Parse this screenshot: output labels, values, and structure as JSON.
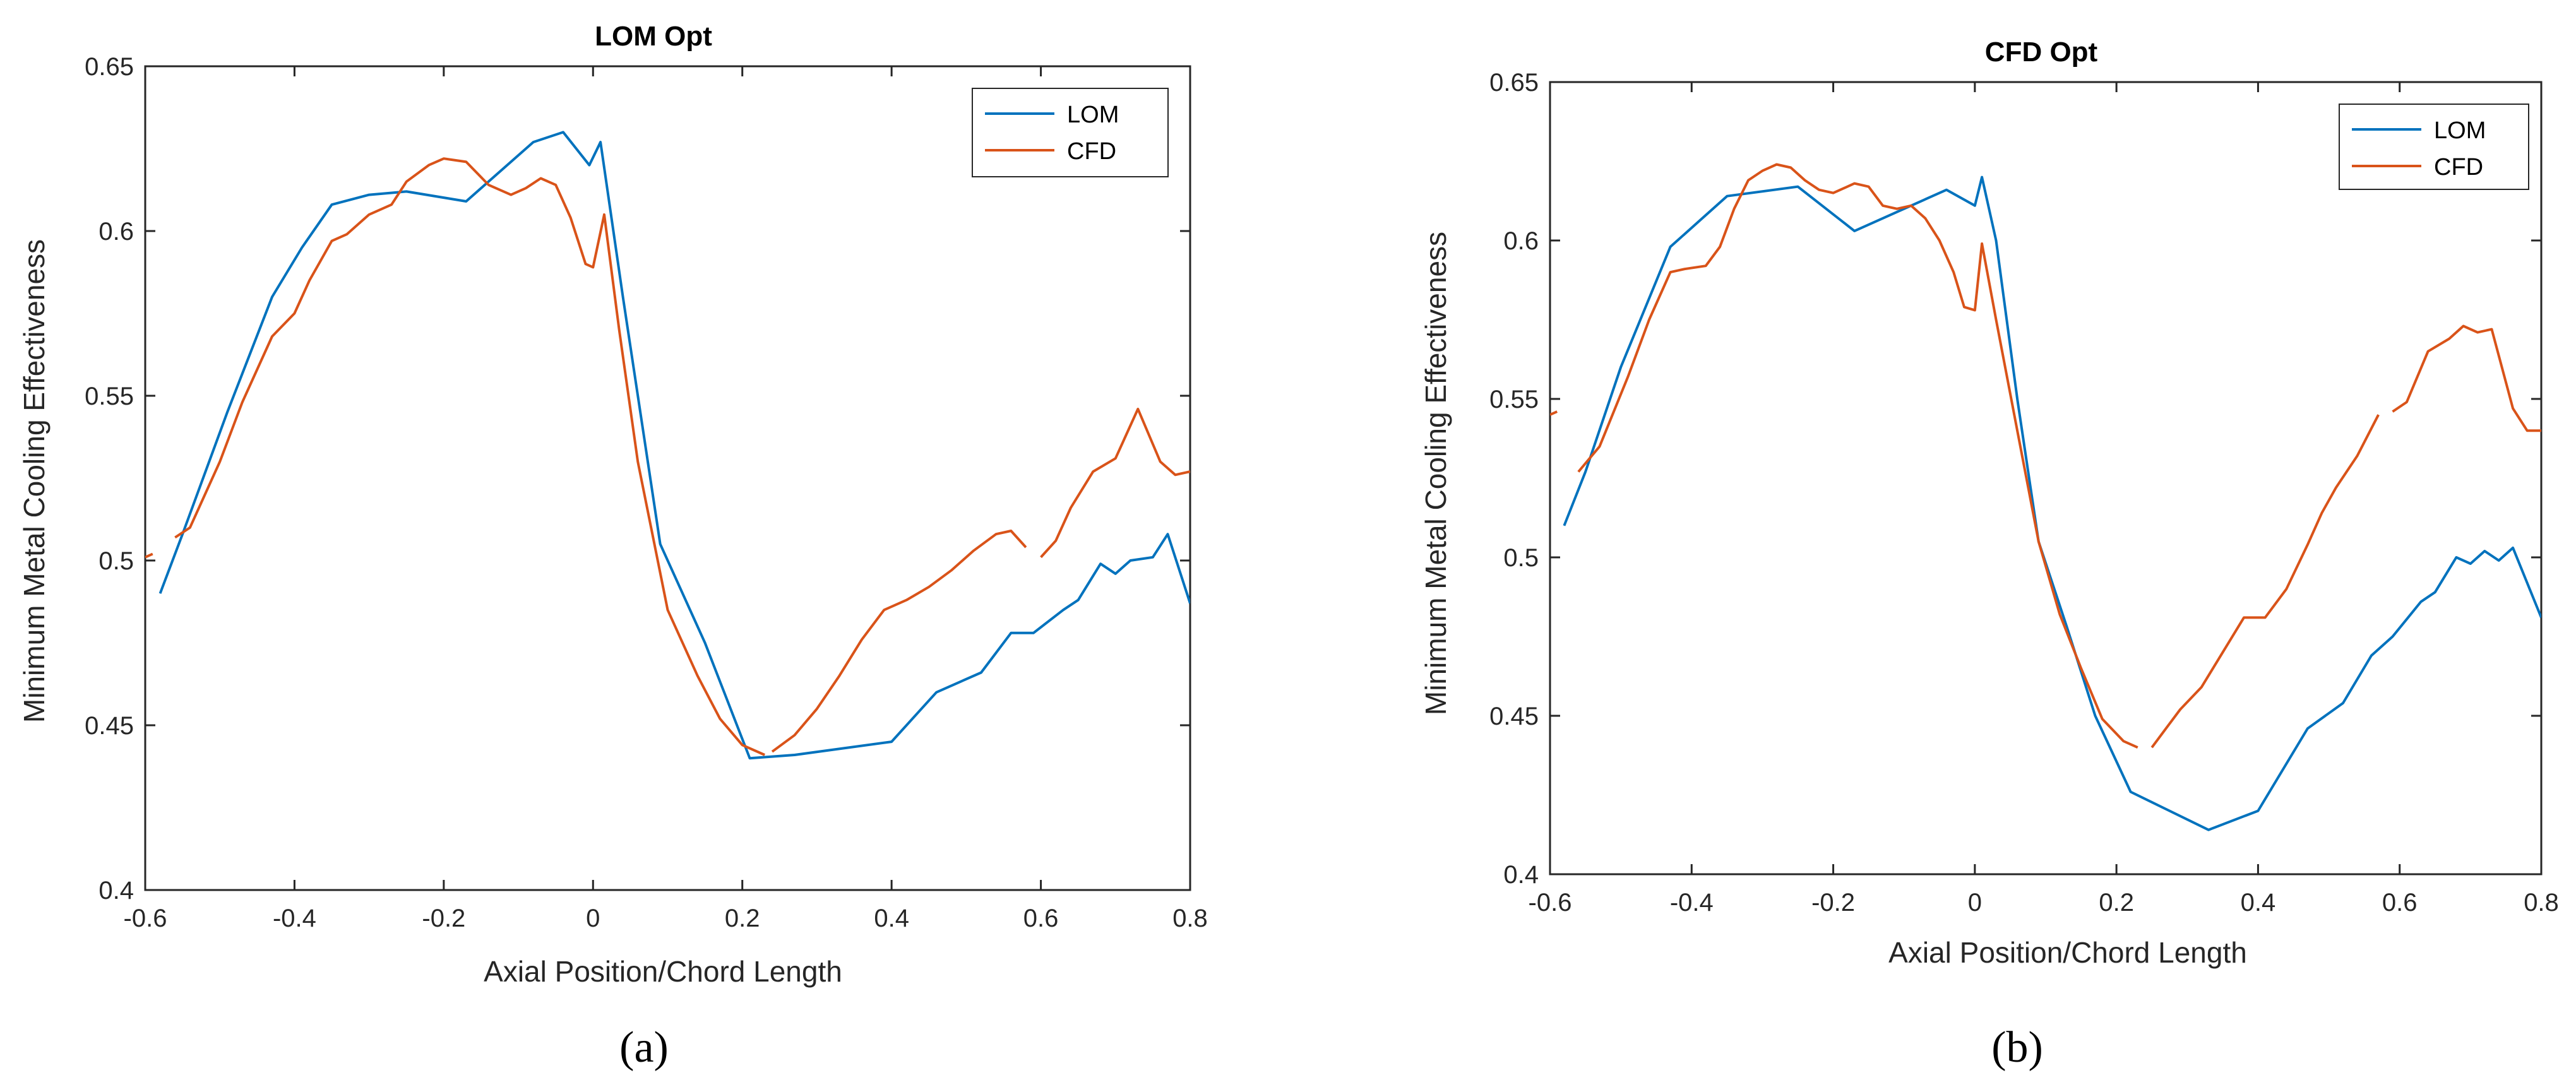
{
  "colors": {
    "lom": "#0072BD",
    "cfd": "#D95319",
    "axis": "#262626"
  },
  "captions": [
    "(a)",
    "(b)"
  ],
  "chart_data": [
    {
      "type": "line",
      "title": "LOM Opt",
      "xlabel": "Axial Position/Chord Length",
      "ylabel": "Minimum Metal Cooling Effectiveness",
      "xlim": [
        -0.6,
        0.8
      ],
      "ylim": [
        0.4,
        0.65
      ],
      "xticks": [
        -0.6,
        -0.4,
        -0.2,
        0,
        0.2,
        0.4,
        0.6,
        0.8
      ],
      "xtick_labels": [
        "-0.6",
        "-0.4",
        "-0.2",
        "0",
        "0.2",
        "0.4",
        "0.6",
        "0.8"
      ],
      "yticks": [
        0.4,
        0.45,
        0.5,
        0.55,
        0.6,
        0.65
      ],
      "ytick_labels": [
        "0.4",
        "0.45",
        "0.5",
        "0.55",
        "0.6",
        "0.65"
      ],
      "legend_position": "top-right",
      "grid": false,
      "series": [
        {
          "name": "LOM",
          "color_key": "lom",
          "segments": [
            [
              [
                -0.58,
                0.49
              ],
              [
                -0.55,
                0.508
              ],
              [
                -0.49,
                0.545
              ],
              [
                -0.43,
                0.58
              ],
              [
                -0.39,
                0.595
              ],
              [
                -0.35,
                0.608
              ],
              [
                -0.3,
                0.611
              ],
              [
                -0.25,
                0.612
              ],
              [
                -0.17,
                0.609
              ],
              [
                -0.08,
                0.627
              ],
              [
                -0.04,
                0.63
              ],
              [
                -0.005,
                0.62
              ],
              [
                0.01,
                0.627
              ],
              [
                0.04,
                0.58
              ],
              [
                0.09,
                0.505
              ],
              [
                0.15,
                0.475
              ],
              [
                0.21,
                0.44
              ],
              [
                0.27,
                0.441
              ],
              [
                0.4,
                0.445
              ],
              [
                0.46,
                0.46
              ],
              [
                0.52,
                0.466
              ],
              [
                0.56,
                0.478
              ],
              [
                0.59,
                0.478
              ],
              [
                0.63,
                0.485
              ],
              [
                0.65,
                0.488
              ],
              [
                0.68,
                0.499
              ],
              [
                0.7,
                0.496
              ],
              [
                0.72,
                0.5
              ],
              [
                0.75,
                0.501
              ],
              [
                0.77,
                0.508
              ],
              [
                0.8,
                0.487
              ]
            ]
          ]
        },
        {
          "name": "CFD",
          "color_key": "cfd",
          "segments": [
            [
              [
                -0.6,
                0.501
              ],
              [
                -0.59,
                0.502
              ]
            ],
            [
              [
                -0.56,
                0.507
              ],
              [
                -0.54,
                0.51
              ],
              [
                -0.5,
                0.53
              ],
              [
                -0.47,
                0.548
              ],
              [
                -0.43,
                0.568
              ],
              [
                -0.4,
                0.575
              ],
              [
                -0.38,
                0.585
              ],
              [
                -0.35,
                0.597
              ],
              [
                -0.33,
                0.599
              ],
              [
                -0.3,
                0.605
              ],
              [
                -0.27,
                0.608
              ],
              [
                -0.25,
                0.615
              ],
              [
                -0.22,
                0.62
              ],
              [
                -0.2,
                0.622
              ],
              [
                -0.17,
                0.621
              ],
              [
                -0.14,
                0.614
              ],
              [
                -0.11,
                0.611
              ],
              [
                -0.09,
                0.613
              ],
              [
                -0.07,
                0.616
              ],
              [
                -0.05,
                0.614
              ],
              [
                -0.03,
                0.604
              ],
              [
                -0.01,
                0.59
              ],
              [
                0.0,
                0.589
              ],
              [
                0.015,
                0.605
              ],
              [
                0.035,
                0.57
              ],
              [
                0.06,
                0.53
              ],
              [
                0.1,
                0.485
              ],
              [
                0.14,
                0.465
              ],
              [
                0.17,
                0.452
              ],
              [
                0.2,
                0.444
              ],
              [
                0.23,
                0.441
              ]
            ],
            [
              [
                0.24,
                0.442
              ],
              [
                0.27,
                0.447
              ],
              [
                0.3,
                0.455
              ],
              [
                0.33,
                0.465
              ],
              [
                0.36,
                0.476
              ],
              [
                0.39,
                0.485
              ],
              [
                0.42,
                0.488
              ],
              [
                0.45,
                0.492
              ],
              [
                0.48,
                0.497
              ],
              [
                0.51,
                0.503
              ],
              [
                0.54,
                0.508
              ],
              [
                0.56,
                0.509
              ],
              [
                0.58,
                0.504
              ]
            ],
            [
              [
                0.6,
                0.501
              ],
              [
                0.62,
                0.506
              ],
              [
                0.64,
                0.516
              ],
              [
                0.67,
                0.527
              ],
              [
                0.7,
                0.531
              ],
              [
                0.73,
                0.546
              ],
              [
                0.76,
                0.53
              ],
              [
                0.78,
                0.526
              ],
              [
                0.8,
                0.527
              ]
            ]
          ]
        }
      ]
    },
    {
      "type": "line",
      "title": "CFD Opt",
      "xlabel": "Axial Position/Chord Length",
      "ylabel": "Minimum Metal Cooling Effectiveness",
      "xlim": [
        -0.6,
        0.8
      ],
      "ylim": [
        0.4,
        0.65
      ],
      "xticks": [
        -0.6,
        -0.4,
        -0.2,
        0,
        0.2,
        0.4,
        0.6,
        0.8
      ],
      "xtick_labels": [
        "-0.6",
        "-0.4",
        "-0.2",
        "0",
        "0.2",
        "0.4",
        "0.6",
        "0.8"
      ],
      "yticks": [
        0.4,
        0.45,
        0.5,
        0.55,
        0.6,
        0.65
      ],
      "ytick_labels": [
        "0.4",
        "0.45",
        "0.5",
        "0.55",
        "0.6",
        "0.65"
      ],
      "legend_position": "top-right",
      "grid": false,
      "series": [
        {
          "name": "LOM",
          "color_key": "lom",
          "segments": [
            [
              [
                -0.58,
                0.51
              ],
              [
                -0.55,
                0.527
              ],
              [
                -0.5,
                0.56
              ],
              [
                -0.43,
                0.598
              ],
              [
                -0.39,
                0.606
              ],
              [
                -0.35,
                0.614
              ],
              [
                -0.25,
                0.617
              ],
              [
                -0.17,
                0.603
              ],
              [
                -0.11,
                0.609
              ],
              [
                -0.04,
                0.616
              ],
              [
                0.0,
                0.611
              ],
              [
                0.01,
                0.62
              ],
              [
                0.03,
                0.6
              ],
              [
                0.06,
                0.55
              ],
              [
                0.09,
                0.505
              ],
              [
                0.13,
                0.478
              ],
              [
                0.17,
                0.45
              ],
              [
                0.22,
                0.426
              ],
              [
                0.33,
                0.414
              ],
              [
                0.4,
                0.42
              ],
              [
                0.47,
                0.446
              ],
              [
                0.52,
                0.454
              ],
              [
                0.56,
                0.469
              ],
              [
                0.59,
                0.475
              ],
              [
                0.63,
                0.486
              ],
              [
                0.65,
                0.489
              ],
              [
                0.68,
                0.5
              ],
              [
                0.7,
                0.498
              ],
              [
                0.72,
                0.502
              ],
              [
                0.74,
                0.499
              ],
              [
                0.76,
                0.503
              ],
              [
                0.8,
                0.481
              ]
            ]
          ]
        },
        {
          "name": "CFD",
          "color_key": "cfd",
          "segments": [
            [
              [
                -0.6,
                0.545
              ],
              [
                -0.59,
                0.546
              ]
            ],
            [
              [
                -0.56,
                0.527
              ],
              [
                -0.53,
                0.535
              ],
              [
                -0.49,
                0.557
              ],
              [
                -0.46,
                0.575
              ],
              [
                -0.43,
                0.59
              ],
              [
                -0.41,
                0.591
              ],
              [
                -0.38,
                0.592
              ],
              [
                -0.36,
                0.598
              ],
              [
                -0.34,
                0.61
              ],
              [
                -0.32,
                0.619
              ],
              [
                -0.3,
                0.622
              ],
              [
                -0.28,
                0.624
              ],
              [
                -0.26,
                0.623
              ],
              [
                -0.24,
                0.619
              ],
              [
                -0.22,
                0.616
              ],
              [
                -0.2,
                0.615
              ],
              [
                -0.17,
                0.618
              ],
              [
                -0.15,
                0.617
              ],
              [
                -0.13,
                0.611
              ],
              [
                -0.11,
                0.61
              ],
              [
                -0.09,
                0.611
              ],
              [
                -0.07,
                0.607
              ],
              [
                -0.05,
                0.6
              ],
              [
                -0.03,
                0.59
              ],
              [
                -0.015,
                0.579
              ],
              [
                0.0,
                0.578
              ],
              [
                0.01,
                0.599
              ],
              [
                0.03,
                0.575
              ],
              [
                0.06,
                0.54
              ],
              [
                0.09,
                0.505
              ],
              [
                0.12,
                0.482
              ],
              [
                0.15,
                0.465
              ],
              [
                0.18,
                0.449
              ],
              [
                0.21,
                0.442
              ],
              [
                0.23,
                0.44
              ]
            ],
            [
              [
                0.25,
                0.44
              ],
              [
                0.27,
                0.446
              ],
              [
                0.29,
                0.452
              ],
              [
                0.32,
                0.459
              ],
              [
                0.35,
                0.47
              ],
              [
                0.38,
                0.481
              ],
              [
                0.41,
                0.481
              ],
              [
                0.44,
                0.49
              ],
              [
                0.47,
                0.504
              ],
              [
                0.49,
                0.514
              ],
              [
                0.51,
                0.522
              ],
              [
                0.54,
                0.532
              ],
              [
                0.57,
                0.545
              ]
            ],
            [
              [
                0.59,
                0.546
              ],
              [
                0.61,
                0.549
              ],
              [
                0.64,
                0.565
              ],
              [
                0.67,
                0.569
              ],
              [
                0.69,
                0.573
              ],
              [
                0.71,
                0.571
              ],
              [
                0.73,
                0.572
              ],
              [
                0.76,
                0.547
              ],
              [
                0.78,
                0.54
              ],
              [
                0.8,
                0.54
              ]
            ]
          ]
        }
      ]
    }
  ]
}
